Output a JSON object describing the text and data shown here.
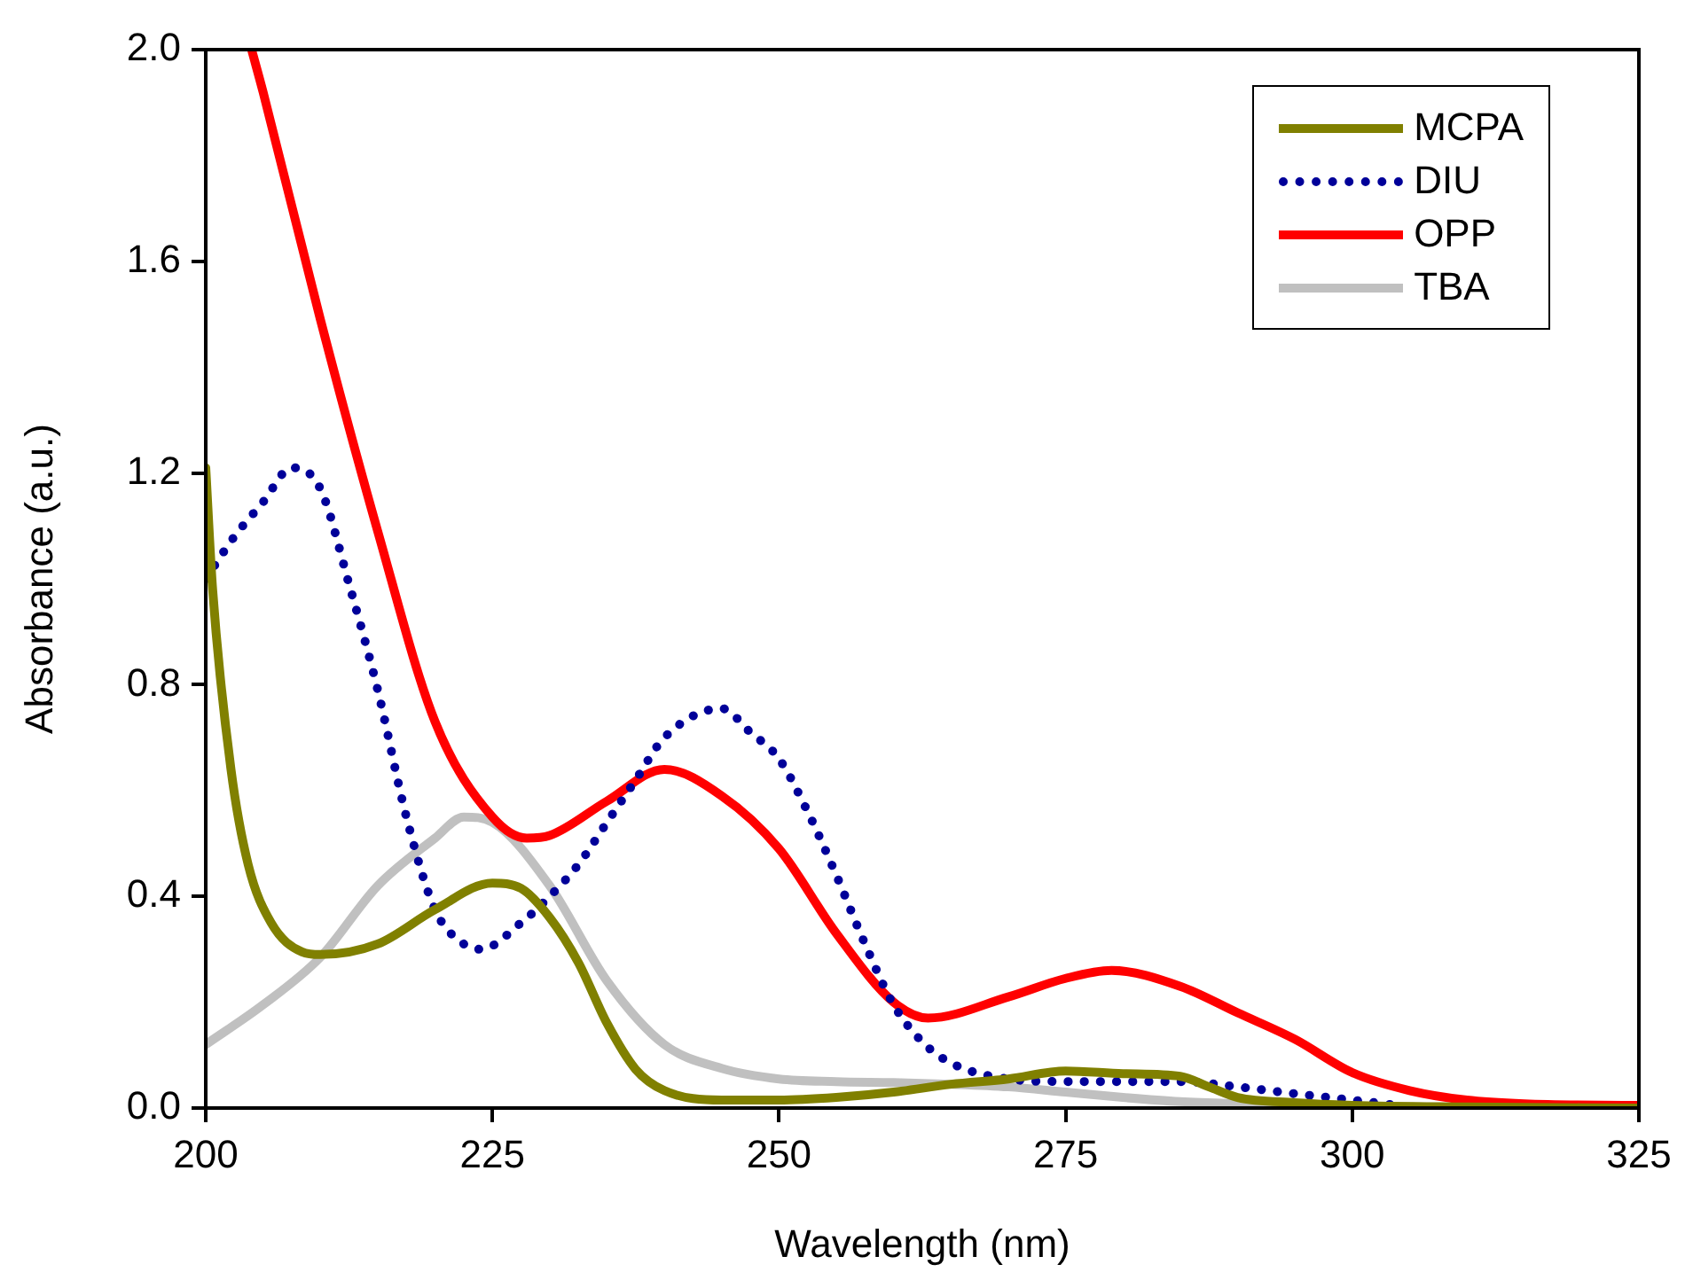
{
  "chart_data": {
    "type": "line",
    "xlabel": "Wavelength (nm)",
    "ylabel": "Absorbance (a.u.)",
    "xlim": [
      200,
      325
    ],
    "xticks": [
      200,
      225,
      250,
      275,
      300,
      325
    ],
    "ylim": [
      0,
      2
    ],
    "yticks": [
      {
        "value": 0,
        "label": "0.0"
      },
      0.4,
      0.8,
      1.2,
      1.6,
      {
        "value": 2,
        "label": "2.0"
      }
    ],
    "grid": false,
    "legend": "top right",
    "marker": "none",
    "series": [
      {
        "name": "MCPA",
        "color": "#808000",
        "line_style": "solid",
        "x": [
          200,
          200.6,
          202.2,
          203.7,
          205.7,
          208.4,
          210,
          215,
          220,
          225,
          227.5,
          230,
          232.5,
          235,
          237.5,
          240,
          245,
          250,
          255,
          260,
          265,
          270,
          275,
          280,
          285,
          287.5,
          290,
          295,
          300,
          310,
          325
        ],
        "values": [
          1.21,
          0.98,
          0.64,
          0.46,
          0.35,
          0.295,
          0.29,
          0.31,
          0.375,
          0.425,
          0.415,
          0.36,
          0.275,
          0.16,
          0.073,
          0.033,
          0.015,
          0.015,
          0.02,
          0.03,
          0.045,
          0.055,
          0.07,
          0.065,
          0.06,
          0.04,
          0.02,
          0.01,
          0.005,
          0.002,
          0
        ]
      },
      {
        "name": "DIU",
        "color": "#000099",
        "line_style": "dotted",
        "x": [
          200,
          202.5,
          205,
          207.5,
          210,
          212.5,
          215,
          217.5,
          220,
          222.5,
          224,
          227.5,
          230,
          232.5,
          235,
          237.5,
          240,
          245,
          247.5,
          250,
          252.5,
          255,
          257.5,
          260,
          262.5,
          265,
          270,
          275,
          280,
          285,
          290,
          295,
          300,
          304
        ],
        "values": [
          1.0,
          1.08,
          1.145,
          1.21,
          1.17,
          0.99,
          0.79,
          0.55,
          0.375,
          0.31,
          0.3,
          0.35,
          0.4,
          0.46,
          0.54,
          0.62,
          0.7,
          0.755,
          0.71,
          0.66,
          0.56,
          0.44,
          0.31,
          0.195,
          0.125,
          0.085,
          0.055,
          0.05,
          0.05,
          0.05,
          0.04,
          0.027,
          0.015,
          0.005
        ]
      },
      {
        "name": "OPP",
        "color": "#ff0000",
        "line_style": "solid",
        "x": [
          204,
          205,
          210,
          215,
          220,
          225,
          228,
          230,
          235,
          240,
          245,
          250,
          255,
          260,
          263,
          270,
          275,
          279,
          285,
          290,
          295,
          300,
          305,
          310,
          315,
          325
        ],
        "values": [
          2.0,
          1.92,
          1.49,
          1.09,
          0.73,
          0.55,
          0.51,
          0.515,
          0.58,
          0.64,
          0.59,
          0.49,
          0.33,
          0.2,
          0.17,
          0.21,
          0.245,
          0.26,
          0.23,
          0.18,
          0.13,
          0.067,
          0.033,
          0.015,
          0.008,
          0.005
        ]
      },
      {
        "name": "TBA",
        "color": "#c0c0c0",
        "line_style": "solid",
        "x": [
          200,
          205,
          210,
          215,
          220,
          222.5,
          225,
          230,
          235,
          240,
          245,
          250,
          255,
          260,
          265,
          270,
          275,
          280,
          285,
          290,
          300,
          325
        ],
        "values": [
          0.12,
          0.195,
          0.285,
          0.42,
          0.51,
          0.55,
          0.54,
          0.42,
          0.24,
          0.12,
          0.075,
          0.055,
          0.05,
          0.048,
          0.045,
          0.04,
          0.03,
          0.02,
          0.012,
          0.008,
          0.003,
          0
        ]
      }
    ]
  }
}
